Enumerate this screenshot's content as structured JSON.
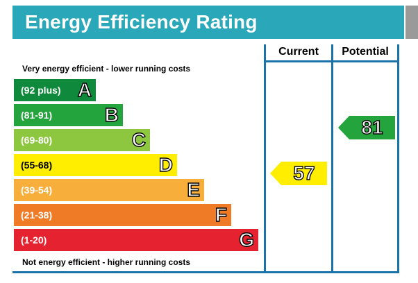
{
  "header": {
    "title": "Energy Efficiency Rating"
  },
  "columns": {
    "current": "Current",
    "potential": "Potential"
  },
  "captions": {
    "top": "Very energy efficient - lower running costs",
    "bottom": "Not energy efficient - higher running costs"
  },
  "chart_data": {
    "type": "bar",
    "title": "Energy Efficiency Rating",
    "categories": [
      "A",
      "B",
      "C",
      "D",
      "E",
      "F",
      "G"
    ],
    "bands": [
      {
        "letter": "A",
        "range": "(92 plus)",
        "color": "#0f8a3c"
      },
      {
        "letter": "B",
        "range": "(81-91)",
        "color": "#24a43d"
      },
      {
        "letter": "C",
        "range": "(69-80)",
        "color": "#8dc63f"
      },
      {
        "letter": "D",
        "range": "(55-68)",
        "color": "#ffee00"
      },
      {
        "letter": "E",
        "range": "(39-54)",
        "color": "#f7ae3b"
      },
      {
        "letter": "F",
        "range": "(21-38)",
        "color": "#ef7b27"
      },
      {
        "letter": "G",
        "range": "(1-20)",
        "color": "#e52330"
      }
    ],
    "current": {
      "value": "57",
      "band": "D",
      "color": "#ffee00"
    },
    "potential": {
      "value": "81",
      "band": "B",
      "color": "#24a43d"
    }
  }
}
